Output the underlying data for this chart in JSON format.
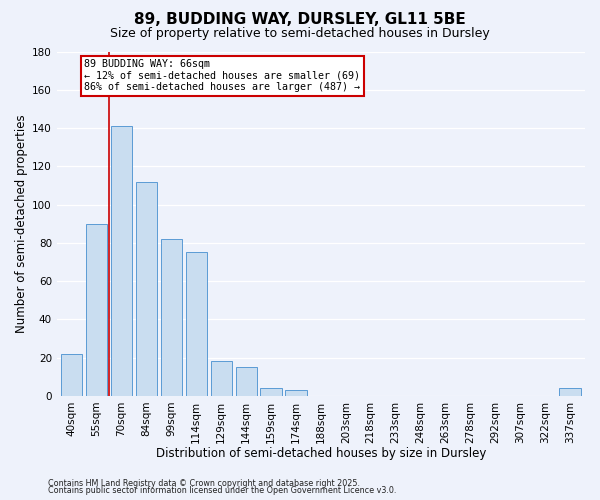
{
  "title": "89, BUDDING WAY, DURSLEY, GL11 5BE",
  "subtitle": "Size of property relative to semi-detached houses in Dursley",
  "xlabel": "Distribution of semi-detached houses by size in Dursley",
  "ylabel": "Number of semi-detached properties",
  "bar_labels": [
    "40sqm",
    "55sqm",
    "70sqm",
    "84sqm",
    "99sqm",
    "114sqm",
    "129sqm",
    "144sqm",
    "159sqm",
    "174sqm",
    "188sqm",
    "203sqm",
    "218sqm",
    "233sqm",
    "248sqm",
    "263sqm",
    "278sqm",
    "292sqm",
    "307sqm",
    "322sqm",
    "337sqm"
  ],
  "bar_values": [
    22,
    90,
    141,
    112,
    82,
    75,
    18,
    15,
    4,
    3,
    0,
    0,
    0,
    0,
    0,
    0,
    0,
    0,
    0,
    0,
    4
  ],
  "bar_color": "#c9ddf0",
  "bar_edge_color": "#5b9bd5",
  "marker_color": "#cc0000",
  "ylim": [
    0,
    180
  ],
  "yticks": [
    0,
    20,
    40,
    60,
    80,
    100,
    120,
    140,
    160,
    180
  ],
  "annotation_box_color": "#ffffff",
  "annotation_box_edge": "#cc0000",
  "ann_line1": "89 BUDDING WAY: 66sqm",
  "ann_line2": "← 12% of semi-detached houses are smaller (69)",
  "ann_line3": "86% of semi-detached houses are larger (487) →",
  "footer1": "Contains HM Land Registry data © Crown copyright and database right 2025.",
  "footer2": "Contains public sector information licensed under the Open Government Licence v3.0.",
  "background_color": "#eef2fb",
  "grid_color": "#ffffff",
  "title_fontsize": 11,
  "subtitle_fontsize": 9,
  "axis_label_fontsize": 8.5,
  "tick_fontsize": 7.5,
  "footer_fontsize": 5.8
}
